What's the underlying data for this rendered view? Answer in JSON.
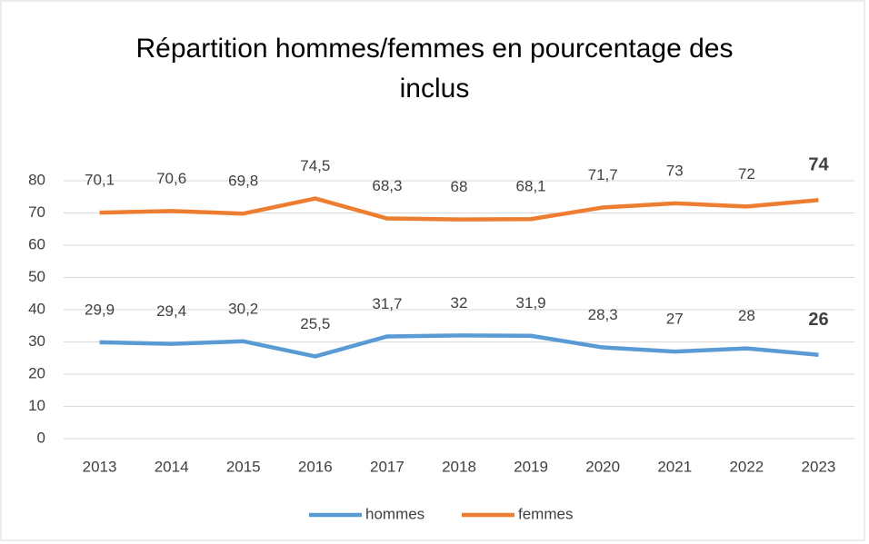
{
  "chart_data": {
    "type": "line",
    "title": "Répartition hommes/femmes en pourcentage des inclus",
    "categories": [
      "2013",
      "2014",
      "2015",
      "2016",
      "2017",
      "2018",
      "2019",
      "2020",
      "2021",
      "2022",
      "2023"
    ],
    "series": [
      {
        "name": "hommes",
        "color": "#5b9bd5",
        "values": [
          29.9,
          29.4,
          30.2,
          25.5,
          31.7,
          32,
          31.9,
          28.3,
          27,
          28,
          26
        ],
        "value_labels": [
          "29,9",
          "29,4",
          "30,2",
          "25,5",
          "31,7",
          "32",
          "31,9",
          "28,3",
          "27",
          "28",
          "26"
        ]
      },
      {
        "name": "femmes",
        "color": "#ed7d31",
        "values": [
          70.1,
          70.6,
          69.8,
          74.5,
          68.3,
          68,
          68.1,
          71.7,
          73,
          72,
          74
        ],
        "value_labels": [
          "70,1",
          "70,6",
          "69,8",
          "74,5",
          "68,3",
          "68",
          "68,1",
          "71,7",
          "73",
          "72",
          "74"
        ]
      }
    ],
    "ylim": [
      0,
      80
    ],
    "yticks": [
      0,
      10,
      20,
      30,
      40,
      50,
      60,
      70,
      80
    ],
    "grid": true,
    "legend": "bottom"
  }
}
